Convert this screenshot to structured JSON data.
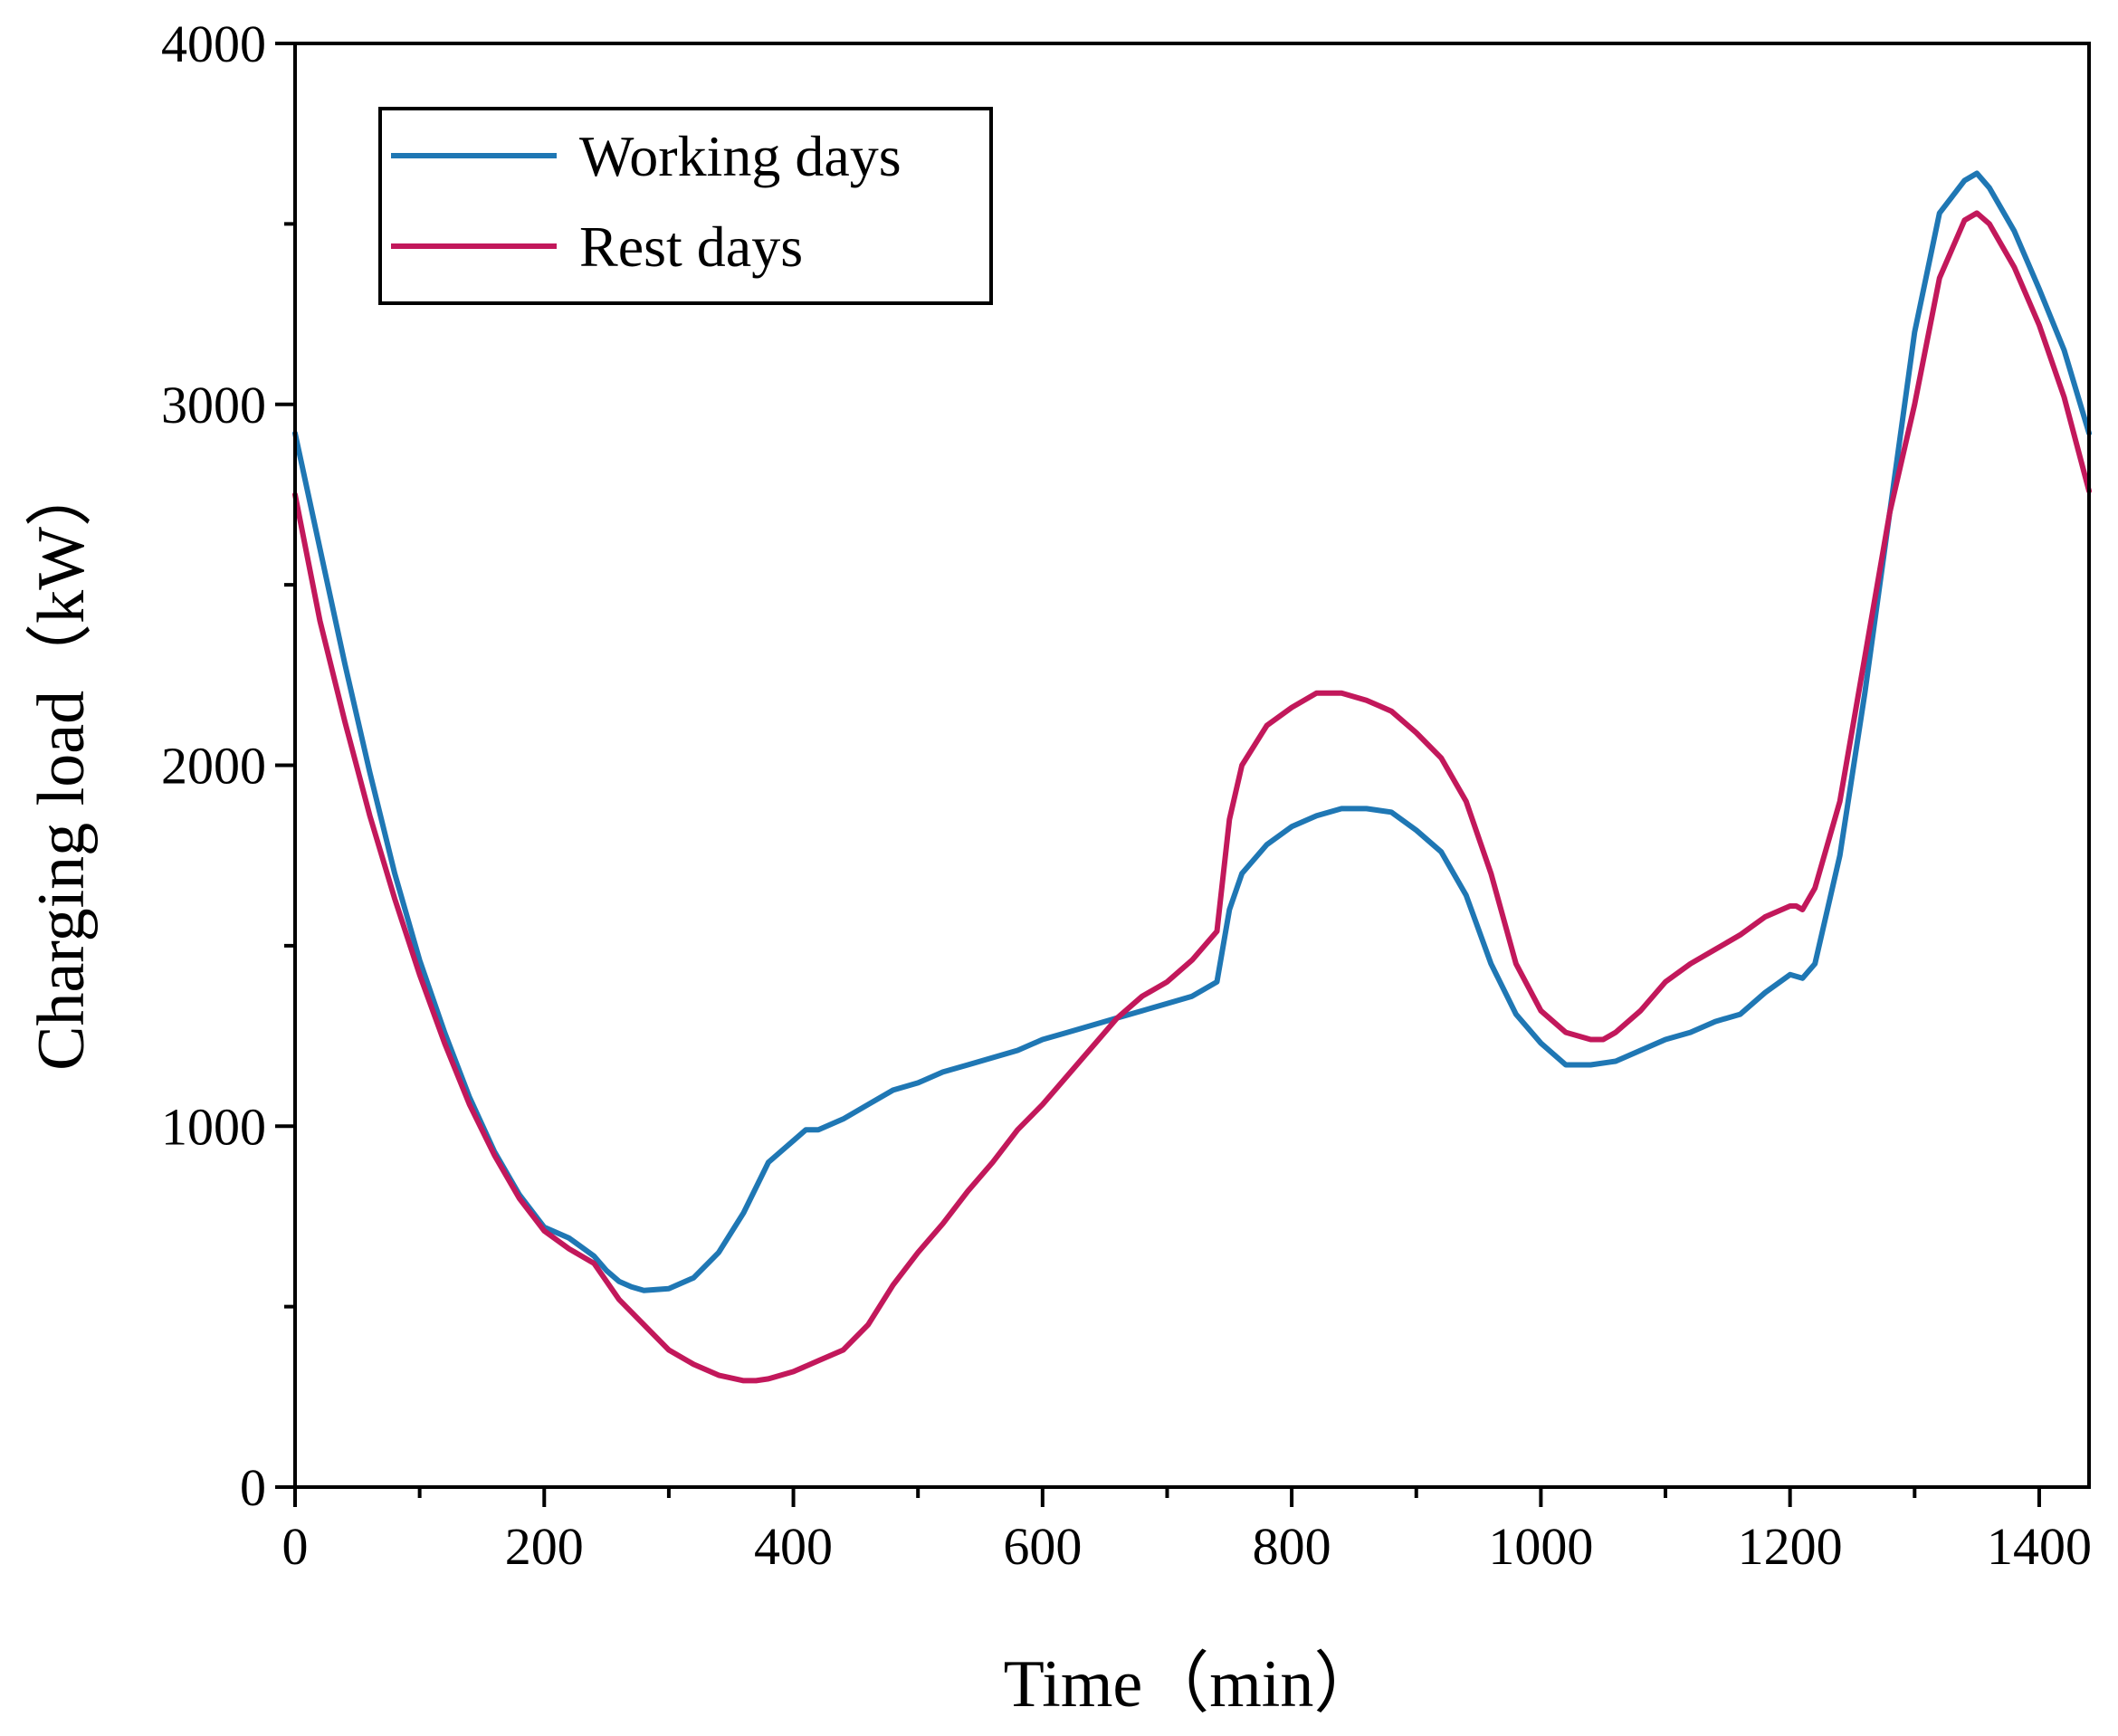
{
  "chart_data": {
    "type": "line",
    "title": "",
    "xlabel": "Time（min）",
    "ylabel": "Charging load（kW）",
    "xlim": [
      0,
      1440
    ],
    "ylim": [
      0,
      4000
    ],
    "x_ticks": [
      0,
      200,
      400,
      600,
      800,
      1000,
      1200,
      1400
    ],
    "x_tick_labels": [
      "0",
      "200",
      "400",
      "600",
      "800",
      "1000",
      "1200",
      "1400"
    ],
    "y_ticks": [
      0,
      1000,
      2000,
      3000,
      4000
    ],
    "y_tick_labels": [
      "0",
      "1000",
      "2000",
      "3000",
      "4000"
    ],
    "grid": false,
    "legend_position": "top-left",
    "series": [
      {
        "name": "Working days",
        "color": "#1f77b4",
        "x": [
          0,
          20,
          40,
          60,
          80,
          100,
          120,
          140,
          160,
          180,
          200,
          220,
          240,
          250,
          260,
          270,
          280,
          300,
          320,
          340,
          360,
          380,
          400,
          410,
          420,
          440,
          460,
          480,
          500,
          520,
          540,
          560,
          580,
          600,
          620,
          640,
          660,
          680,
          700,
          720,
          740,
          750,
          760,
          780,
          800,
          820,
          840,
          860,
          880,
          900,
          920,
          940,
          960,
          980,
          1000,
          1020,
          1040,
          1060,
          1080,
          1100,
          1120,
          1140,
          1160,
          1180,
          1200,
          1210,
          1220,
          1240,
          1260,
          1280,
          1300,
          1320,
          1340,
          1350,
          1360,
          1380,
          1400,
          1420,
          1440
        ],
        "values": [
          2920,
          2600,
          2280,
          1980,
          1700,
          1460,
          1260,
          1080,
          930,
          810,
          720,
          690,
          640,
          600,
          570,
          555,
          545,
          550,
          580,
          650,
          760,
          900,
          960,
          990,
          990,
          1020,
          1060,
          1100,
          1120,
          1150,
          1170,
          1190,
          1210,
          1240,
          1260,
          1280,
          1300,
          1320,
          1340,
          1360,
          1400,
          1600,
          1700,
          1780,
          1830,
          1860,
          1880,
          1880,
          1870,
          1820,
          1760,
          1640,
          1450,
          1310,
          1230,
          1170,
          1170,
          1180,
          1210,
          1240,
          1260,
          1290,
          1310,
          1370,
          1420,
          1410,
          1450,
          1750,
          2200,
          2700,
          3200,
          3530,
          3620,
          3640,
          3600,
          3480,
          3320,
          3150,
          2920
        ]
      },
      {
        "name": "Rest days",
        "color": "#c2185b",
        "x": [
          0,
          20,
          40,
          60,
          80,
          100,
          120,
          140,
          160,
          180,
          200,
          220,
          240,
          250,
          260,
          280,
          300,
          320,
          340,
          360,
          370,
          380,
          400,
          420,
          440,
          460,
          480,
          500,
          520,
          540,
          560,
          580,
          600,
          620,
          640,
          660,
          680,
          700,
          720,
          740,
          750,
          760,
          780,
          800,
          820,
          840,
          860,
          880,
          900,
          920,
          940,
          960,
          980,
          1000,
          1020,
          1040,
          1050,
          1060,
          1080,
          1100,
          1120,
          1140,
          1160,
          1180,
          1200,
          1205,
          1210,
          1220,
          1240,
          1260,
          1280,
          1300,
          1320,
          1340,
          1350,
          1360,
          1380,
          1400,
          1420,
          1440
        ],
        "values": [
          2750,
          2400,
          2120,
          1860,
          1630,
          1420,
          1230,
          1060,
          920,
          800,
          710,
          660,
          620,
          570,
          520,
          450,
          380,
          340,
          310,
          295,
          295,
          300,
          320,
          350,
          380,
          450,
          560,
          650,
          730,
          820,
          900,
          990,
          1060,
          1140,
          1220,
          1300,
          1360,
          1400,
          1460,
          1540,
          1850,
          2000,
          2110,
          2160,
          2200,
          2200,
          2180,
          2150,
          2090,
          2020,
          1900,
          1700,
          1450,
          1320,
          1260,
          1240,
          1240,
          1260,
          1320,
          1400,
          1450,
          1490,
          1530,
          1580,
          1610,
          1610,
          1600,
          1660,
          1900,
          2300,
          2700,
          3000,
          3350,
          3510,
          3530,
          3500,
          3380,
          3220,
          3020,
          2760
        ]
      }
    ]
  }
}
